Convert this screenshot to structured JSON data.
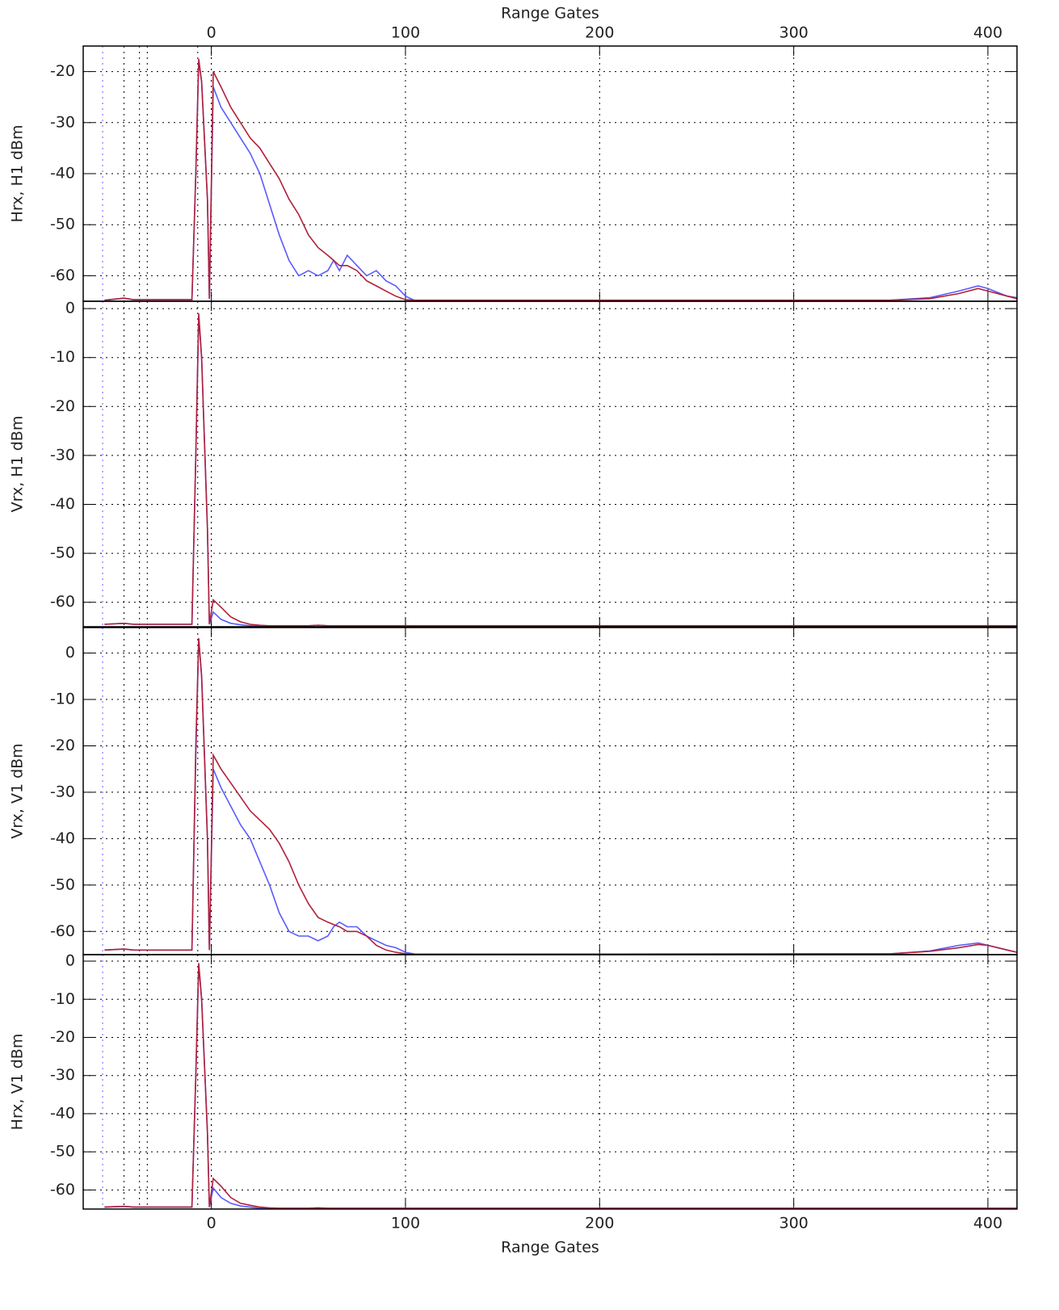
{
  "chart_data": [
    {
      "type": "line",
      "xlabel": "Range Gates",
      "xaxis_labels": "top",
      "ylabel": "Hrx, H1 dBm",
      "xlim": [
        -66,
        415
      ],
      "xticks": [
        0,
        100,
        200,
        300,
        400
      ],
      "ylim": [
        -65,
        -15
      ],
      "yticks": [
        -60,
        -50,
        -40,
        -30,
        -20
      ],
      "grid": true,
      "vlines": [
        {
          "x": -56,
          "color": "#6060ff"
        },
        {
          "x": -45,
          "color": "#000000"
        },
        {
          "x": -37,
          "color": "#000000"
        },
        {
          "x": -33,
          "color": "#000000"
        },
        {
          "x": -7,
          "color": "#000000"
        },
        {
          "x": 0,
          "color": "#000000"
        }
      ],
      "x": [
        -55,
        -45,
        -40,
        -10,
        -8,
        -6.5,
        -5,
        -2,
        -1,
        1,
        5,
        10,
        15,
        20,
        25,
        30,
        35,
        40,
        45,
        50,
        55,
        60,
        63,
        66,
        70,
        75,
        80,
        85,
        90,
        95,
        100,
        105,
        150,
        350,
        370,
        385,
        395,
        400,
        410,
        415
      ],
      "series": [
        {
          "color": "#5a5aff",
          "values": [
            -64.8,
            -64.4,
            -64.7,
            -64.7,
            -40,
            -18,
            -22,
            -45,
            -64.5,
            -23,
            -27,
            -30,
            -33,
            -36,
            -40,
            -46,
            -52,
            -57,
            -60,
            -59,
            -60,
            -59,
            -57,
            -59,
            -56,
            -58,
            -60,
            -59,
            -61,
            -62,
            -64,
            -64.9,
            -64.9,
            -64.8,
            -64.3,
            -63,
            -62,
            -62.5,
            -64,
            -64.3
          ]
        },
        {
          "color": "#b0203a",
          "values": [
            -64.8,
            -64.4,
            -64.7,
            -64.7,
            -40,
            -17.5,
            -22,
            -45,
            -64.5,
            -20,
            -23,
            -27,
            -30,
            -33,
            -35,
            -38,
            -41,
            -45,
            -48,
            -52,
            -54.5,
            -56,
            -57,
            -58,
            -58,
            -59,
            -61,
            -62,
            -63,
            -64,
            -64.7,
            -64.8,
            -64.8,
            -64.8,
            -64.5,
            -63.5,
            -62.5,
            -63,
            -64,
            -64.5
          ]
        }
      ]
    },
    {
      "type": "line",
      "ylabel": "Vrx, H1 dBm",
      "xlim": [
        -66,
        415
      ],
      "xticks": [
        0,
        100,
        200,
        300,
        400
      ],
      "ylim": [
        -65,
        1.5
      ],
      "yticks": [
        -60,
        -50,
        -40,
        -30,
        -20,
        -10,
        0
      ],
      "grid": true,
      "vlines": [
        {
          "x": -56,
          "color": "#6060ff"
        },
        {
          "x": -45,
          "color": "#000000"
        },
        {
          "x": -37,
          "color": "#000000"
        },
        {
          "x": -33,
          "color": "#000000"
        },
        {
          "x": -7,
          "color": "#000000"
        },
        {
          "x": 0,
          "color": "#000000"
        }
      ],
      "x": [
        -55,
        -45,
        -40,
        -10,
        -8,
        -6.5,
        -5,
        -2,
        -1,
        1,
        5,
        10,
        15,
        20,
        25,
        30,
        35,
        40,
        45,
        50,
        55,
        60,
        63,
        66,
        70,
        75,
        80,
        85,
        90,
        95,
        100,
        105,
        150,
        350,
        370,
        385,
        395,
        400,
        410,
        415
      ],
      "series": [
        {
          "color": "#5a5aff",
          "values": [
            -64.5,
            -64.3,
            -64.5,
            -64.5,
            -30,
            -1.5,
            -10,
            -45,
            -64.5,
            -62,
            -63.5,
            -64.3,
            -64.6,
            -64.8,
            -64.8,
            -64.8,
            -64.8,
            -64.8,
            -64.8,
            -64.8,
            -64.7,
            -64.8,
            -64.8,
            -64.8,
            -64.8,
            -64.8,
            -64.8,
            -64.8,
            -64.8,
            -64.8,
            -64.8,
            -64.8,
            -64.8,
            -64.8,
            -64.8,
            -64.8,
            -64.8,
            -64.8,
            -64.8,
            -64.8
          ]
        },
        {
          "color": "#b0203a",
          "values": [
            -64.5,
            -64.3,
            -64.5,
            -64.5,
            -30,
            -1,
            -10,
            -45,
            -64.5,
            -59.5,
            -61,
            -63,
            -64,
            -64.5,
            -64.7,
            -64.8,
            -64.8,
            -64.8,
            -64.8,
            -64.8,
            -64.7,
            -64.8,
            -64.8,
            -64.8,
            -64.8,
            -64.8,
            -64.8,
            -64.8,
            -64.8,
            -64.8,
            -64.8,
            -64.8,
            -64.8,
            -64.8,
            -64.8,
            -64.8,
            -64.8,
            -64.8,
            -64.8,
            -64.8
          ]
        }
      ]
    },
    {
      "type": "line",
      "ylabel": "Vrx, V1 dBm",
      "xlim": [
        -66,
        415
      ],
      "xticks": [
        0,
        100,
        200,
        300,
        400
      ],
      "ylim": [
        -65,
        5.5
      ],
      "yticks": [
        -60,
        -50,
        -40,
        -30,
        -20,
        -10,
        0
      ],
      "grid": true,
      "vlines": [
        {
          "x": -56,
          "color": "#6060ff"
        },
        {
          "x": -45,
          "color": "#000000"
        },
        {
          "x": -37,
          "color": "#000000"
        },
        {
          "x": -33,
          "color": "#000000"
        },
        {
          "x": -7,
          "color": "#000000"
        },
        {
          "x": 0,
          "color": "#000000"
        }
      ],
      "x": [
        -55,
        -45,
        -40,
        -10,
        -8,
        -6.5,
        -5,
        -2,
        -1,
        1,
        5,
        10,
        15,
        20,
        25,
        30,
        35,
        40,
        45,
        50,
        55,
        60,
        63,
        66,
        70,
        75,
        80,
        85,
        90,
        95,
        100,
        105,
        150,
        350,
        370,
        385,
        395,
        400,
        410,
        415
      ],
      "series": [
        {
          "color": "#5a5aff",
          "values": [
            -64,
            -63.8,
            -64,
            -64,
            -22,
            3,
            -5,
            -40,
            -64,
            -25,
            -29,
            -33,
            -37,
            -40,
            -45,
            -50,
            -56,
            -60,
            -61,
            -61,
            -62,
            -61,
            -59,
            -58,
            -59,
            -59,
            -61,
            -62,
            -63,
            -63.5,
            -64.5,
            -64.9,
            -64.9,
            -64.8,
            -64.2,
            -63,
            -62.5,
            -63,
            -64,
            -64.5
          ]
        },
        {
          "color": "#b0203a",
          "values": [
            -64,
            -63.8,
            -64,
            -64,
            -20,
            3.2,
            -5,
            -40,
            -64,
            -22,
            -25,
            -28,
            -31,
            -34,
            -36,
            -38,
            -41,
            -45,
            -50,
            -54,
            -57,
            -58,
            -58.5,
            -59,
            -60,
            -60,
            -61,
            -63,
            -64,
            -64.5,
            -64.8,
            -64.9,
            -64.9,
            -64.8,
            -64.3,
            -63.5,
            -62.8,
            -63,
            -64,
            -64.5
          ]
        }
      ]
    },
    {
      "type": "line",
      "xlabel": "Range Gates",
      "xaxis_labels": "bottom",
      "ylabel": "Hrx, V1 dBm",
      "xlim": [
        -66,
        415
      ],
      "xticks": [
        0,
        100,
        200,
        300,
        400
      ],
      "ylim": [
        -65,
        1.7
      ],
      "yticks": [
        -60,
        -50,
        -40,
        -30,
        -20,
        -10,
        0
      ],
      "grid": true,
      "vlines": [
        {
          "x": -56,
          "color": "#6060ff"
        },
        {
          "x": -45,
          "color": "#000000"
        },
        {
          "x": -37,
          "color": "#000000"
        },
        {
          "x": -33,
          "color": "#000000"
        },
        {
          "x": -7,
          "color": "#000000"
        },
        {
          "x": 0,
          "color": "#000000"
        }
      ],
      "x": [
        -55,
        -45,
        -40,
        -10,
        -8,
        -6.5,
        -5,
        -2,
        -1,
        1,
        5,
        10,
        15,
        20,
        25,
        30,
        35,
        40,
        45,
        50,
        55,
        60,
        63,
        66,
        70,
        75,
        80,
        85,
        90,
        95,
        100,
        105,
        150,
        350,
        370,
        385,
        395,
        400,
        410,
        415
      ],
      "series": [
        {
          "color": "#5a5aff",
          "values": [
            -64.5,
            -64.3,
            -64.5,
            -64.5,
            -30,
            -1,
            -10,
            -45,
            -64.5,
            -59.5,
            -62,
            -63.5,
            -64.2,
            -64.5,
            -64.8,
            -64.8,
            -64.8,
            -64.8,
            -64.8,
            -64.8,
            -64.7,
            -64.8,
            -64.8,
            -64.8,
            -64.8,
            -64.8,
            -64.8,
            -64.8,
            -64.8,
            -64.8,
            -64.8,
            -64.8,
            -64.8,
            -64.8,
            -64.8,
            -64.8,
            -64.8,
            -64.8,
            -64.8,
            -64.8
          ]
        },
        {
          "color": "#b0203a",
          "values": [
            -64.5,
            -64.3,
            -64.5,
            -64.5,
            -30,
            -0.5,
            -10,
            -45,
            -64.5,
            -57,
            -59,
            -62,
            -63.5,
            -64,
            -64.5,
            -64.7,
            -64.8,
            -64.8,
            -64.8,
            -64.8,
            -64.7,
            -64.8,
            -64.8,
            -64.8,
            -64.8,
            -64.8,
            -64.8,
            -64.8,
            -64.8,
            -64.8,
            -64.8,
            -64.8,
            -64.8,
            -64.8,
            -64.8,
            -64.8,
            -64.8,
            -64.8,
            -64.8,
            -64.8
          ]
        }
      ]
    }
  ]
}
